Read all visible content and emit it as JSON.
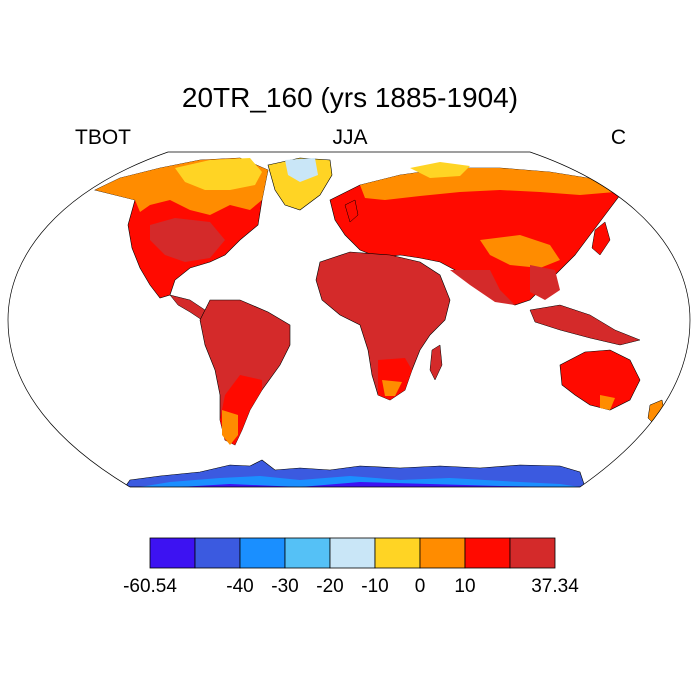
{
  "title": "20TR_160 (yrs 1885-1904)",
  "label_left": "TBOT",
  "label_center": "JJA",
  "label_right": "C",
  "colorbar": {
    "colors": [
      "#3d12f2",
      "#3b5ae0",
      "#1a8fff",
      "#55c1f6",
      "#c9e6f7",
      "#ffd424",
      "#ff8c00",
      "#ff0a00",
      "#d42a2a"
    ],
    "tick_labels": [
      "-60.54",
      "-40",
      "-30",
      "-20",
      "-10",
      "0",
      "10",
      "37.34"
    ]
  },
  "map_colors": {
    "ocean": "#ffffff",
    "outline": "#000000"
  }
}
